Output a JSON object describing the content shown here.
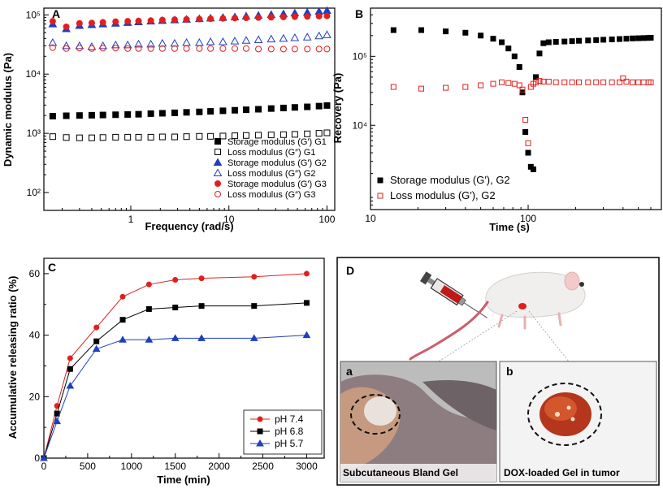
{
  "chart_data": [
    {
      "panel": "A",
      "type": "scatter",
      "xlabel": "Frequency (rad/s)",
      "ylabel": "Dynamic modulus (Pa)",
      "x_scale": "log",
      "y_scale": "log",
      "xlim": [
        0.13,
        120
      ],
      "ylim": [
        50,
        130000
      ],
      "x_ticks": [
        1,
        10,
        100
      ],
      "x_tick_labels": [
        "1",
        "10",
        "100"
      ],
      "y_ticks": [
        100,
        1000,
        10000,
        100000
      ],
      "y_tick_labels": [
        "10²",
        "10³",
        "10⁴",
        "10⁵"
      ],
      "legend_position": "bottom-right",
      "x": [
        0.16,
        0.22,
        0.3,
        0.4,
        0.52,
        0.7,
        0.93,
        1.2,
        1.6,
        2.1,
        2.8,
        3.7,
        5,
        6.5,
        8.7,
        11.5,
        15,
        20,
        27,
        36,
        47,
        63,
        83,
        100
      ],
      "series": [
        {
          "name": "Storage modulus (G′) G1",
          "color": "#000000",
          "marker": "square-filled",
          "values": [
            1950,
            1980,
            2000,
            2020,
            2040,
            2060,
            2080,
            2100,
            2150,
            2180,
            2220,
            2260,
            2300,
            2350,
            2400,
            2450,
            2500,
            2550,
            2620,
            2680,
            2740,
            2800,
            2880,
            2950
          ]
        },
        {
          "name": "Loss modulus (G″) G1",
          "color": "#000000",
          "marker": "square-open",
          "values": [
            880,
            850,
            840,
            840,
            850,
            860,
            860,
            860,
            860,
            870,
            870,
            880,
            890,
            890,
            900,
            910,
            920,
            930,
            940,
            950,
            960,
            980,
            1000,
            1020
          ]
        },
        {
          "name": "Storage modulus (G′) G2",
          "color": "#1f3fbf",
          "marker": "triangle-filled",
          "values": [
            70000,
            58000,
            66000,
            68000,
            70000,
            72000,
            74000,
            76000,
            78000,
            80000,
            82000,
            84000,
            86000,
            88000,
            90000,
            92000,
            95000,
            98000,
            101000,
            104000,
            107000,
            110000,
            114000,
            118000
          ]
        },
        {
          "name": "Loss modulus (G″) G2",
          "color": "#1f3fbf",
          "marker": "triangle-open",
          "values": [
            34000,
            30000,
            30000,
            29000,
            30000,
            31000,
            31000,
            32000,
            32000,
            33000,
            33000,
            34000,
            34000,
            35000,
            35000,
            36000,
            37000,
            38000,
            39000,
            40000,
            41000,
            42000,
            44000,
            46000
          ]
        },
        {
          "name": "Storage modulus (G′) G3",
          "color": "#e0201e",
          "marker": "circle-filled",
          "values": [
            78000,
            63000,
            72000,
            73000,
            75000,
            77000,
            78000,
            79000,
            80000,
            82000,
            83000,
            84000,
            85000,
            86000,
            87000,
            88000,
            89000,
            90000,
            91000,
            92000,
            93000,
            94000,
            95000,
            96000
          ]
        },
        {
          "name": "Loss modulus (G″) G3",
          "color": "#e0201e",
          "marker": "circle-open",
          "values": [
            28000,
            27000,
            27500,
            27000,
            27500,
            27500,
            27000,
            27000,
            27000,
            27000,
            27000,
            27000,
            27000,
            27000,
            27000,
            27000,
            27000,
            26500,
            26500,
            26500,
            26500,
            26500,
            26500,
            26500
          ]
        }
      ]
    },
    {
      "panel": "B",
      "type": "scatter",
      "xlabel": "Time (s)",
      "ylabel": "Recovery (Pa)",
      "x_scale": "log",
      "y_scale": "log",
      "xlim": [
        10,
        700
      ],
      "ylim": [
        600,
        500000
      ],
      "x_ticks": [
        10,
        100
      ],
      "x_tick_labels": [
        "10",
        "100"
      ],
      "y_ticks": [
        10000,
        100000
      ],
      "y_tick_labels": [
        "10⁴",
        "10⁵"
      ],
      "legend_position": "bottom-left",
      "series": [
        {
          "name": "Storage modulus (G′), G2",
          "color": "#000000",
          "marker": "square-filled",
          "x": [
            14,
            21,
            30,
            40,
            50,
            60,
            68,
            75,
            82,
            88,
            92,
            96,
            100,
            104,
            108,
            112,
            118,
            125,
            135,
            150,
            170,
            190,
            210,
            240,
            270,
            300,
            340,
            380,
            420,
            460,
            500,
            540,
            580,
            600
          ],
          "y": [
            240000,
            240000,
            230000,
            220000,
            200000,
            180000,
            160000,
            130000,
            100000,
            70000,
            30000,
            8000,
            4000,
            2500,
            2300,
            50000,
            110000,
            155000,
            160000,
            162000,
            164000,
            166000,
            168000,
            170000,
            172000,
            174000,
            176000,
            178000,
            180000,
            182000,
            183000,
            184000,
            185000,
            186000
          ]
        },
        {
          "name": "Loss modulus (G′), G2",
          "color": "#e0201e",
          "marker": "square-open",
          "x": [
            14,
            21,
            30,
            40,
            50,
            60,
            68,
            75,
            82,
            88,
            92,
            96,
            100,
            104,
            108,
            112,
            118,
            125,
            135,
            150,
            170,
            190,
            210,
            240,
            270,
            300,
            340,
            380,
            400,
            420,
            460,
            500,
            540,
            580,
            600
          ],
          "y": [
            36000,
            34000,
            35000,
            36000,
            38000,
            40000,
            42000,
            41000,
            40000,
            38000,
            33000,
            12000,
            5500,
            36000,
            40000,
            42000,
            44000,
            43000,
            43000,
            42000,
            42000,
            42000,
            42000,
            42000,
            42000,
            42000,
            42000,
            42000,
            48000,
            43000,
            42000,
            42000,
            42000,
            42000,
            42000
          ]
        }
      ]
    },
    {
      "panel": "C",
      "type": "line",
      "xlabel": "Time (min)",
      "ylabel": "Accumulative releasing ratio (%)",
      "xlim": [
        0,
        3200
      ],
      "ylim": [
        0,
        65
      ],
      "x_ticks": [
        0,
        500,
        1000,
        1500,
        2000,
        2500,
        3000
      ],
      "y_ticks": [
        0,
        20,
        40,
        60
      ],
      "legend_position": "bottom-right",
      "x": [
        0,
        150,
        300,
        600,
        900,
        1200,
        1500,
        1800,
        2400,
        3000
      ],
      "series": [
        {
          "name": "pH 7.4",
          "color": "#e0201e",
          "marker": "circle",
          "values": [
            0,
            17,
            32.5,
            42.5,
            52.5,
            56.5,
            58,
            58.5,
            59,
            60
          ]
        },
        {
          "name": "pH 6.8",
          "color": "#000000",
          "marker": "square",
          "values": [
            0,
            14.5,
            29,
            38,
            45,
            48.5,
            49,
            49.5,
            49.5,
            50.5
          ]
        },
        {
          "name": "pH 5.7",
          "color": "#1f3fbf",
          "marker": "triangle",
          "values": [
            0,
            12,
            23.5,
            35.5,
            38.5,
            38.5,
            39,
            39,
            39,
            40
          ]
        }
      ]
    }
  ],
  "panels": {
    "a": "A",
    "b": "B",
    "c": "C",
    "d": "D"
  },
  "photo_panel": {
    "sub_a_letter": "a",
    "sub_b_letter": "b",
    "sub_a_caption": "Subcutaneous Bland Gel",
    "sub_b_caption": "DOX-loaded Gel in tumor"
  }
}
